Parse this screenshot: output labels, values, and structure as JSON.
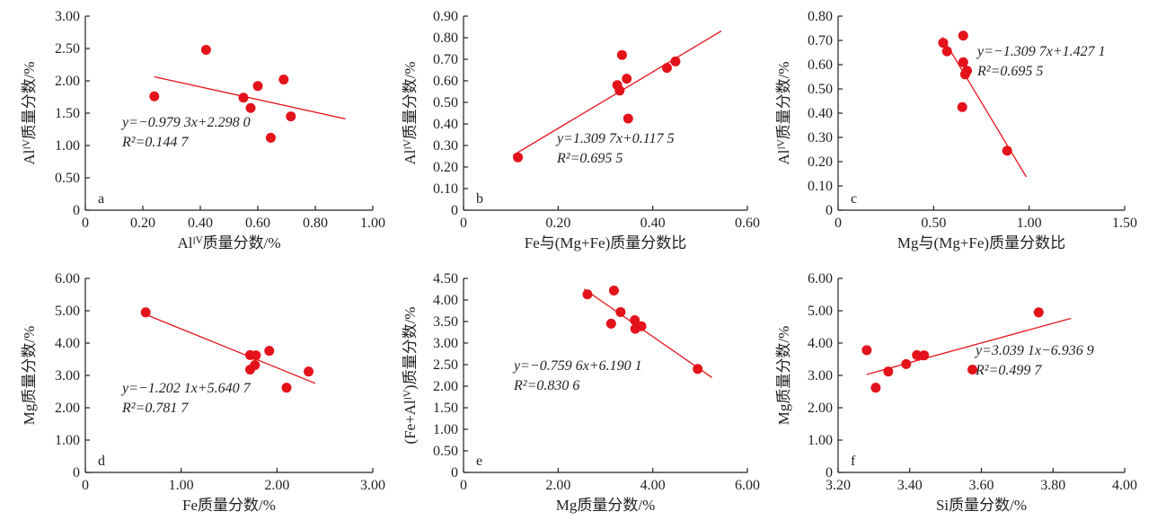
{
  "chart_data": [
    {
      "panel": "a",
      "type": "scatter",
      "xlabel": "Alᴵⱽ质量分数/%",
      "ylabel": "Alᴵⱽ质量分数/%",
      "xlim": [
        0,
        1.0
      ],
      "ylim": [
        0,
        3.0
      ],
      "xticks": [
        "0",
        "0.20",
        "0.40",
        "0.60",
        "0.80",
        "1.00"
      ],
      "xtick_values": [
        0,
        0.2,
        0.4,
        0.6,
        0.8,
        1.0
      ],
      "yticks": [
        "0",
        "0.50",
        "1.00",
        "1.50",
        "2.00",
        "2.50",
        "3.00"
      ],
      "ytick_values": [
        0,
        0.5,
        1.0,
        1.5,
        2.0,
        2.5,
        3.0
      ],
      "points": [
        {
          "x": 0.24,
          "y": 1.76
        },
        {
          "x": 0.42,
          "y": 2.48
        },
        {
          "x": 0.55,
          "y": 1.74
        },
        {
          "x": 0.575,
          "y": 1.58
        },
        {
          "x": 0.6,
          "y": 1.92
        },
        {
          "x": 0.645,
          "y": 1.12
        },
        {
          "x": 0.69,
          "y": 2.02
        },
        {
          "x": 0.715,
          "y": 1.45
        }
      ],
      "fit": {
        "x_range": [
          0.24,
          0.905
        ],
        "slope": -0.9793,
        "intercept": 2.298
      },
      "equation": "y=−0.979 3x+2.298 0",
      "r2": "R²=0.144 7"
    },
    {
      "panel": "b",
      "type": "scatter",
      "xlabel": "Fe与(Mg+Fe)质量分数比",
      "ylabel": "Alᴵⱽ质量分数/%",
      "xlim": [
        0,
        0.6
      ],
      "ylim": [
        0,
        0.9
      ],
      "xticks": [
        "0",
        "0.20",
        "0.40",
        "0.60"
      ],
      "xtick_values": [
        0,
        0.2,
        0.4,
        0.6
      ],
      "yticks": [
        "0",
        "0.10",
        "0.20",
        "0.30",
        "0.40",
        "0.50",
        "0.60",
        "0.70",
        "0.80",
        "0.90"
      ],
      "ytick_values": [
        0,
        0.1,
        0.2,
        0.3,
        0.4,
        0.5,
        0.6,
        0.7,
        0.8,
        0.9
      ],
      "points": [
        {
          "x": 0.115,
          "y": 0.245
        },
        {
          "x": 0.325,
          "y": 0.58
        },
        {
          "x": 0.33,
          "y": 0.555
        },
        {
          "x": 0.335,
          "y": 0.72
        },
        {
          "x": 0.345,
          "y": 0.61
        },
        {
          "x": 0.348,
          "y": 0.425
        },
        {
          "x": 0.43,
          "y": 0.66
        },
        {
          "x": 0.448,
          "y": 0.69
        }
      ],
      "fit": {
        "x_range": [
          0.105,
          0.545
        ],
        "slope": 1.3097,
        "intercept": 0.1175
      },
      "equation": "y=1.309 7x+0.117 5",
      "r2": "R²=0.695 5"
    },
    {
      "panel": "c",
      "type": "scatter",
      "xlabel": "Mg与(Mg+Fe)质量分数比",
      "ylabel": "Alᴵⱽ质量分数/%",
      "xlim": [
        0,
        1.5
      ],
      "ylim": [
        0,
        0.8
      ],
      "xticks": [
        "0",
        "0.50",
        "1.00",
        "1.50"
      ],
      "xtick_values": [
        0,
        0.5,
        1.0,
        1.5
      ],
      "yticks": [
        "0",
        "0.10",
        "0.20",
        "0.30",
        "0.40",
        "0.50",
        "0.60",
        "0.70",
        "0.80"
      ],
      "ytick_values": [
        0,
        0.1,
        0.2,
        0.3,
        0.4,
        0.5,
        0.6,
        0.7,
        0.8
      ],
      "points": [
        {
          "x": 0.55,
          "y": 0.69
        },
        {
          "x": 0.57,
          "y": 0.655
        },
        {
          "x": 0.655,
          "y": 0.72
        },
        {
          "x": 0.655,
          "y": 0.61
        },
        {
          "x": 0.665,
          "y": 0.56
        },
        {
          "x": 0.675,
          "y": 0.575
        },
        {
          "x": 0.65,
          "y": 0.425
        },
        {
          "x": 0.885,
          "y": 0.245
        }
      ],
      "fit": {
        "x_range": [
          0.545,
          0.985
        ],
        "slope": -1.3097,
        "intercept": 1.4271
      },
      "equation": "y=−1.309 7x+1.427 1",
      "r2": "R²=0.695 5"
    },
    {
      "panel": "d",
      "type": "scatter",
      "xlabel": "Fe质量分数/%",
      "ylabel": "Mg质量分数/%",
      "xlim": [
        0,
        3.0
      ],
      "ylim": [
        0,
        6.0
      ],
      "xticks": [
        "0",
        "1.00",
        "2.00",
        "3.00"
      ],
      "xtick_values": [
        0,
        1.0,
        2.0,
        3.0
      ],
      "yticks": [
        "0",
        "1.00",
        "2.00",
        "3.00",
        "4.00",
        "5.00",
        "6.00"
      ],
      "ytick_values": [
        0,
        1,
        2,
        3,
        4,
        5,
        6
      ],
      "points": [
        {
          "x": 0.63,
          "y": 4.95
        },
        {
          "x": 1.72,
          "y": 3.63
        },
        {
          "x": 1.72,
          "y": 3.18
        },
        {
          "x": 1.78,
          "y": 3.62
        },
        {
          "x": 1.77,
          "y": 3.32
        },
        {
          "x": 1.92,
          "y": 3.76
        },
        {
          "x": 2.1,
          "y": 2.62
        },
        {
          "x": 2.33,
          "y": 3.12
        }
      ],
      "fit": {
        "x_range": [
          0.6,
          2.4
        ],
        "slope": -1.2021,
        "intercept": 5.6407
      },
      "equation": "y=−1.202 1x+5.640 7",
      "r2": "R²=0.781 7"
    },
    {
      "panel": "e",
      "type": "scatter",
      "xlabel": "Mg质量分数/%",
      "ylabel": "(Fe+Alᴵⱽ)质量分数/%",
      "xlim": [
        0,
        6.0
      ],
      "ylim": [
        0,
        4.5
      ],
      "xticks": [
        "0",
        "2.00",
        "4.00",
        "6.00"
      ],
      "xtick_values": [
        0,
        2,
        4,
        6
      ],
      "yticks": [
        "0",
        "0.50",
        "1.00",
        "1.50",
        "2.00",
        "2.50",
        "3.00",
        "3.50",
        "4.00",
        "4.50"
      ],
      "ytick_values": [
        0,
        0.5,
        1,
        1.5,
        2,
        2.5,
        3,
        3.5,
        4,
        4.5
      ],
      "points": [
        {
          "x": 2.62,
          "y": 4.13
        },
        {
          "x": 3.12,
          "y": 3.45
        },
        {
          "x": 3.18,
          "y": 4.22
        },
        {
          "x": 3.32,
          "y": 3.72
        },
        {
          "x": 3.62,
          "y": 3.53
        },
        {
          "x": 3.63,
          "y": 3.33
        },
        {
          "x": 3.76,
          "y": 3.39
        },
        {
          "x": 4.95,
          "y": 2.4
        }
      ],
      "fit": {
        "x_range": [
          2.55,
          5.25
        ],
        "slope": -0.7596,
        "intercept": 6.1901
      },
      "equation": "y=−0.759 6x+6.190 1",
      "r2": "R²=0.830 6"
    },
    {
      "panel": "f",
      "type": "scatter",
      "xlabel": "Si质量分数/%",
      "ylabel": "Mg质量分数/%",
      "xlim": [
        3.2,
        4.0
      ],
      "ylim": [
        0,
        6.0
      ],
      "xticks": [
        "3.20",
        "3.40",
        "3.60",
        "3.80",
        "4.00"
      ],
      "xtick_values": [
        3.2,
        3.4,
        3.6,
        3.8,
        4.0
      ],
      "yticks": [
        "0",
        "1.00",
        "2.00",
        "3.00",
        "4.00",
        "5.00",
        "6.00"
      ],
      "ytick_values": [
        0,
        1,
        2,
        3,
        4,
        5,
        6
      ],
      "points": [
        {
          "x": 3.28,
          "y": 3.78
        },
        {
          "x": 3.305,
          "y": 2.62
        },
        {
          "x": 3.34,
          "y": 3.12
        },
        {
          "x": 3.39,
          "y": 3.35
        },
        {
          "x": 3.42,
          "y": 3.63
        },
        {
          "x": 3.44,
          "y": 3.62
        },
        {
          "x": 3.575,
          "y": 3.18
        },
        {
          "x": 3.76,
          "y": 4.95
        }
      ],
      "fit": {
        "x_range": [
          3.28,
          3.85
        ],
        "slope": 3.0391,
        "intercept": -6.9369
      },
      "equation": "y=3.039 1x−6.936 9",
      "r2": "R²=0.499 7"
    }
  ]
}
